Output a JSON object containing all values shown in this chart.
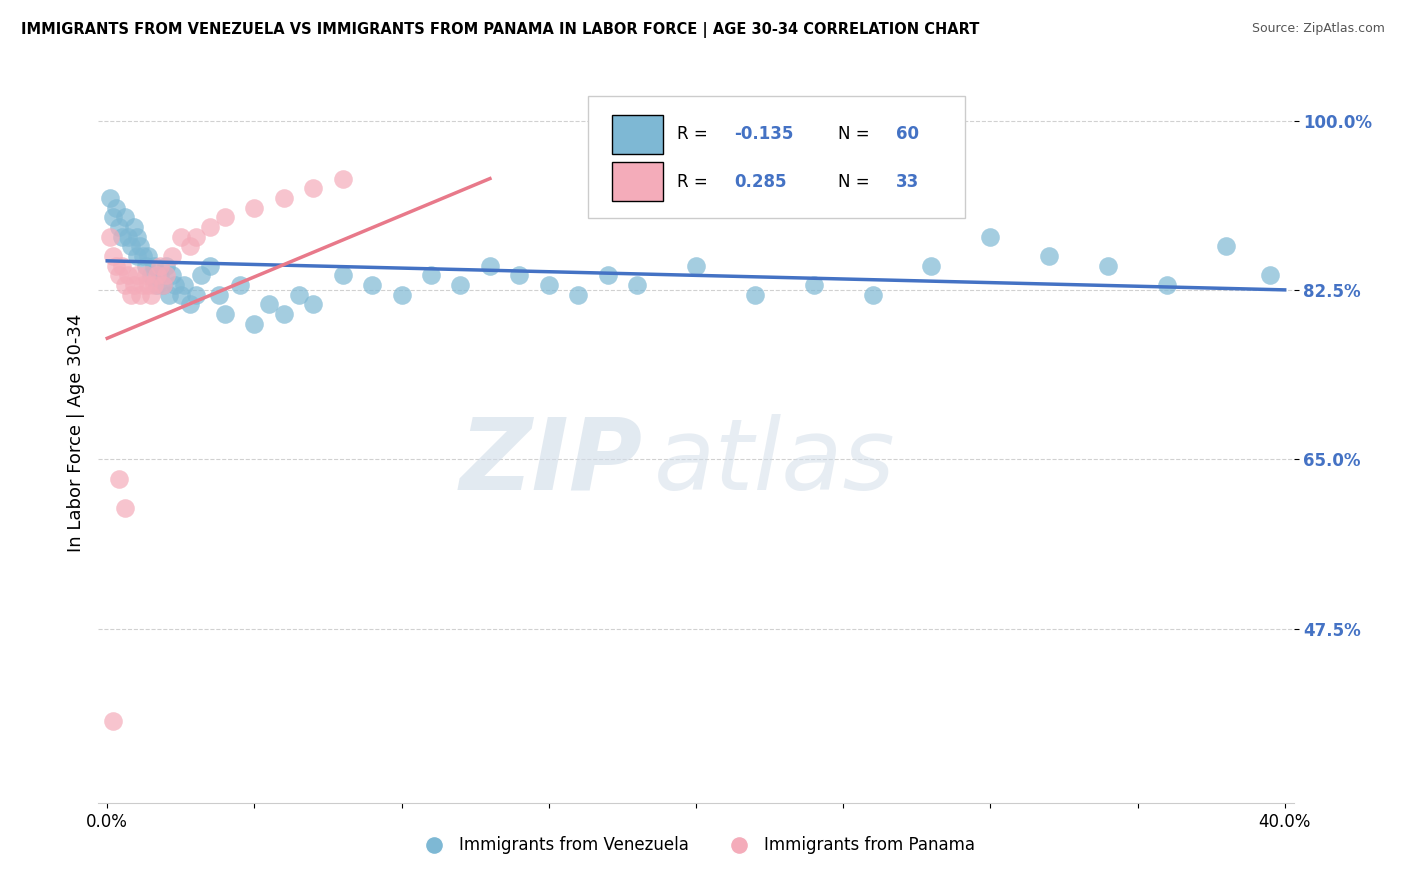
{
  "title": "IMMIGRANTS FROM VENEZUELA VS IMMIGRANTS FROM PANAMA IN LABOR FORCE | AGE 30-34 CORRELATION CHART",
  "source": "Source: ZipAtlas.com",
  "ylabel": "In Labor Force | Age 30-34",
  "xlim": [
    -0.003,
    0.403
  ],
  "ylim": [
    0.295,
    1.06
  ],
  "color_venezuela": "#7EB8D4",
  "color_panama": "#F4ACBA",
  "line_venezuela": "#4472C4",
  "line_panama": "#E8798A",
  "R_venezuela": -0.135,
  "N_venezuela": 60,
  "R_panama": 0.285,
  "N_panama": 33,
  "legend_label_venezuela": "Immigrants from Venezuela",
  "legend_label_panama": "Immigrants from Panama",
  "ytick_vals": [
    0.475,
    0.65,
    0.825,
    1.0
  ],
  "ytick_labels": [
    "47.5%",
    "65.0%",
    "82.5%",
    "100.0%"
  ],
  "xtick_vals": [
    0.0,
    0.05,
    0.1,
    0.15,
    0.2,
    0.25,
    0.3,
    0.35,
    0.4
  ],
  "xtick_labels": [
    "0.0%",
    "",
    "",
    "",
    "",
    "",
    "",
    "",
    "40.0%"
  ],
  "tick_label_color": "#4472C4",
  "venezuela_x": [
    0.001,
    0.002,
    0.003,
    0.004,
    0.005,
    0.006,
    0.007,
    0.008,
    0.009,
    0.01,
    0.01,
    0.011,
    0.012,
    0.013,
    0.014,
    0.015,
    0.016,
    0.017,
    0.018,
    0.019,
    0.02,
    0.021,
    0.022,
    0.023,
    0.025,
    0.026,
    0.028,
    0.03,
    0.032,
    0.035,
    0.038,
    0.04,
    0.045,
    0.05,
    0.055,
    0.06,
    0.065,
    0.07,
    0.08,
    0.09,
    0.1,
    0.11,
    0.12,
    0.13,
    0.14,
    0.15,
    0.16,
    0.17,
    0.18,
    0.2,
    0.22,
    0.24,
    0.26,
    0.28,
    0.3,
    0.32,
    0.34,
    0.36,
    0.38,
    0.395
  ],
  "venezuela_y": [
    0.92,
    0.9,
    0.91,
    0.89,
    0.88,
    0.9,
    0.88,
    0.87,
    0.89,
    0.88,
    0.86,
    0.87,
    0.86,
    0.85,
    0.86,
    0.84,
    0.85,
    0.83,
    0.84,
    0.83,
    0.85,
    0.82,
    0.84,
    0.83,
    0.82,
    0.83,
    0.81,
    0.82,
    0.84,
    0.85,
    0.82,
    0.8,
    0.83,
    0.79,
    0.81,
    0.8,
    0.82,
    0.81,
    0.84,
    0.83,
    0.82,
    0.84,
    0.83,
    0.85,
    0.84,
    0.83,
    0.82,
    0.84,
    0.83,
    0.85,
    0.82,
    0.83,
    0.82,
    0.85,
    0.88,
    0.86,
    0.85,
    0.83,
    0.87,
    0.84
  ],
  "panama_x": [
    0.001,
    0.002,
    0.003,
    0.004,
    0.005,
    0.006,
    0.007,
    0.008,
    0.009,
    0.01,
    0.011,
    0.012,
    0.013,
    0.014,
    0.015,
    0.016,
    0.017,
    0.018,
    0.019,
    0.02,
    0.022,
    0.025,
    0.028,
    0.03,
    0.035,
    0.04,
    0.05,
    0.06,
    0.07,
    0.08,
    0.004,
    0.006,
    0.002
  ],
  "panama_y": [
    0.88,
    0.86,
    0.85,
    0.84,
    0.85,
    0.83,
    0.84,
    0.82,
    0.83,
    0.84,
    0.82,
    0.83,
    0.84,
    0.83,
    0.82,
    0.83,
    0.84,
    0.85,
    0.83,
    0.84,
    0.86,
    0.88,
    0.87,
    0.88,
    0.89,
    0.9,
    0.91,
    0.92,
    0.93,
    0.94,
    0.63,
    0.6,
    0.38
  ],
  "ven_line_x0": 0.0,
  "ven_line_x1": 0.4,
  "ven_line_y0": 0.855,
  "ven_line_y1": 0.825,
  "pan_line_x0": 0.0,
  "pan_line_x1": 0.13,
  "pan_line_y0": 0.775,
  "pan_line_y1": 0.94,
  "watermark_zip_color": "#d0dce8",
  "watermark_atlas_color": "#d0dce8"
}
